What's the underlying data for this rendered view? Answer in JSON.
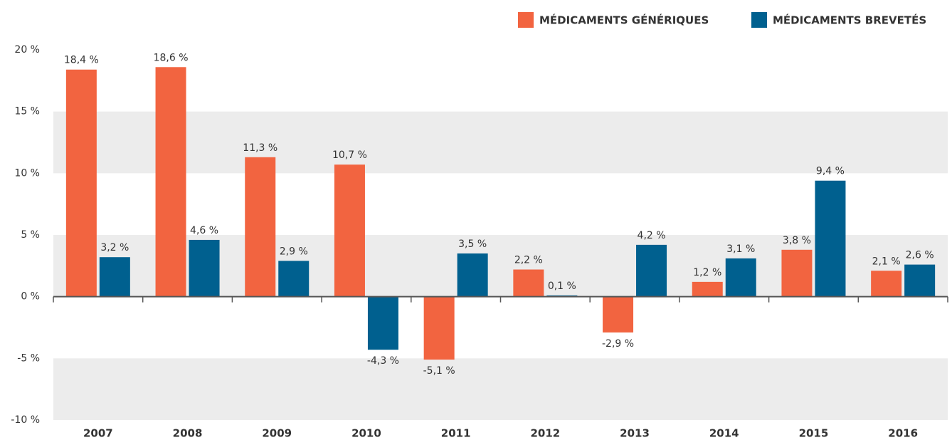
{
  "chart_data": {
    "type": "bar",
    "categories": [
      "2007",
      "2008",
      "2009",
      "2010",
      "2011",
      "2012",
      "2013",
      "2014",
      "2015",
      "2016"
    ],
    "series": [
      {
        "name": "MÉDICAMENTS GÉNÉRIQUES",
        "color": "#f26440",
        "values": [
          18.4,
          18.6,
          11.3,
          10.7,
          -5.1,
          2.2,
          -2.9,
          1.2,
          3.8,
          2.1
        ],
        "value_labels": [
          "18,4 %",
          "18,6 %",
          "11,3 %",
          "10,7 %",
          "-5,1 %",
          "2,2 %",
          "-2,9 %",
          "1,2 %",
          "3,8 %",
          "2,1 %"
        ]
      },
      {
        "name": "MÉDICAMENTS BREVETÉS",
        "color": "#00608f",
        "values": [
          3.2,
          4.6,
          2.9,
          -4.3,
          3.5,
          0.1,
          4.2,
          3.1,
          9.4,
          2.6
        ],
        "value_labels": [
          "3,2 %",
          "4,6 %",
          "2,9 %",
          "-4,3 %",
          "3,5 %",
          "0,1 %",
          "4,2 %",
          "3,1 %",
          "9,4 %",
          "2,6 %"
        ]
      }
    ],
    "ylim": [
      -10,
      20
    ],
    "yticks": [
      {
        "value": 20,
        "label": "20 %"
      },
      {
        "value": 15,
        "label": "15 %"
      },
      {
        "value": 10,
        "label": "10 %"
      },
      {
        "value": 5,
        "label": "5 %"
      },
      {
        "value": 0,
        "label": "0 %"
      },
      {
        "value": -5,
        "label": "-5 %"
      },
      {
        "value": -10,
        "label": "-10 %"
      }
    ],
    "legend": "top-right"
  }
}
